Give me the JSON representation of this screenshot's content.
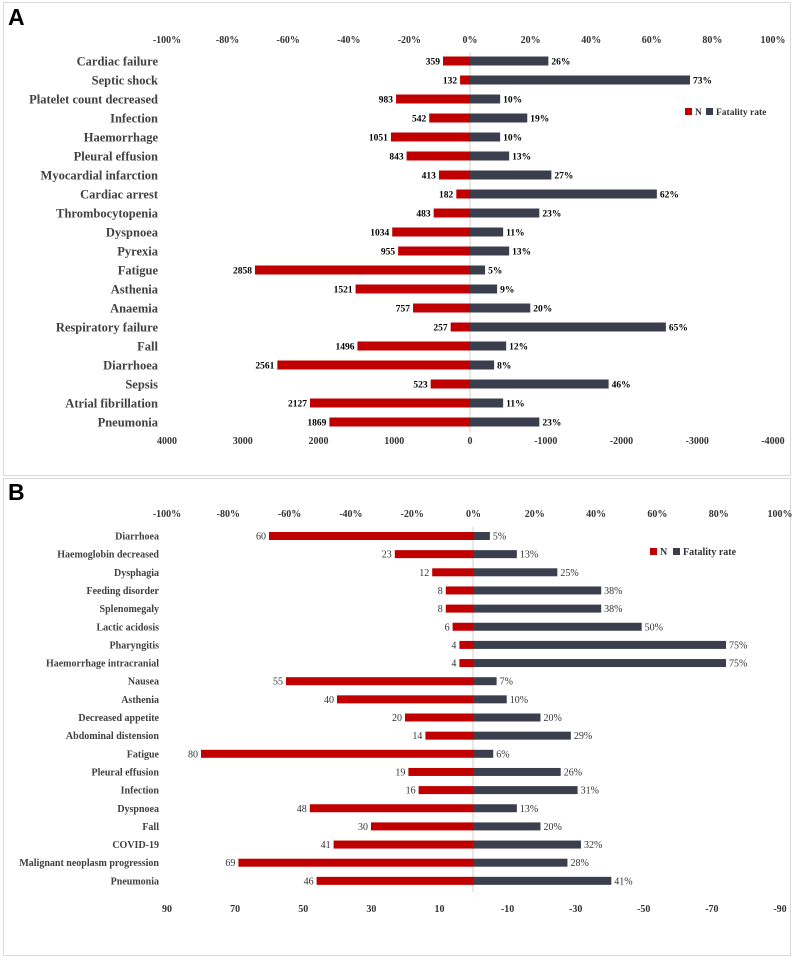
{
  "panels": [
    {
      "letter": "A",
      "legend": {
        "n_label": "N",
        "fatality_label": "Fatality rate"
      },
      "colors": {
        "n": "#c00000",
        "fatality": "#3b3f4d",
        "axis": "#d0d0d0"
      },
      "chart_data": {
        "type": "bar",
        "orientation": "horizontal-diverging",
        "title": "",
        "top_axis_ticks": [
          "-100%",
          "-80%",
          "-60%",
          "-40%",
          "-20%",
          "0%",
          "20%",
          "40%",
          "60%",
          "80%",
          "100%"
        ],
        "top_axis_range": [
          -100,
          100
        ],
        "bottom_axis_ticks": [
          "4000",
          "3000",
          "2000",
          "1000",
          "0",
          "-1000",
          "-2000",
          "-3000",
          "-4000"
        ],
        "bottom_axis_range": [
          4000,
          -4000
        ],
        "categories": [
          "Cardiac failure",
          "Septic shock",
          "Platelet count decreased",
          "Infection",
          "Haemorrhage",
          "Pleural effusion",
          "Myocardial infarction",
          "Cardiac arrest",
          "Thrombocytopenia",
          "Dyspnoea",
          "Pyrexia",
          "Fatigue",
          "Asthenia",
          "Anaemia",
          "Respiratory failure",
          "Fall",
          "Diarrhoea",
          "Sepsis",
          "Atrial fibrillation",
          "Pneumonia"
        ],
        "series": [
          {
            "name": "N",
            "values": [
              359,
              132,
              983,
              542,
              1051,
              843,
              413,
              182,
              483,
              1034,
              955,
              2858,
              1521,
              757,
              257,
              1496,
              2561,
              523,
              2127,
              1869
            ]
          },
          {
            "name": "Fatality rate",
            "values": [
              26,
              73,
              10,
              19,
              10,
              13,
              27,
              62,
              23,
              11,
              13,
              5,
              9,
              20,
              65,
              12,
              8,
              46,
              11,
              23
            ],
            "unit": "%"
          }
        ],
        "n_labels": [
          "359",
          "132",
          "983",
          "542",
          "1051",
          "843",
          "413",
          "182",
          "483",
          "1034",
          "955",
          "2858",
          "1521",
          "757",
          "257",
          "1496",
          "2561",
          "523",
          "2127",
          "1869"
        ],
        "fatality_labels": [
          "26%",
          "73%",
          "10%",
          "19%",
          "10%",
          "13%",
          "27%",
          "62%",
          "23%",
          "11%",
          "13%",
          "5%",
          "9%",
          "20%",
          "65%",
          "12%",
          "8%",
          "46%",
          "11%",
          "23%"
        ]
      }
    },
    {
      "letter": "B",
      "legend": {
        "n_label": "N",
        "fatality_label": "Fatality rate"
      },
      "colors": {
        "n": "#c00000",
        "fatality": "#3b3f4d",
        "axis": "#d0d0d0"
      },
      "chart_data": {
        "type": "bar",
        "orientation": "horizontal-diverging",
        "title": "",
        "top_axis_ticks": [
          "-100%",
          "-80%",
          "-60%",
          "-40%",
          "-20%",
          "0%",
          "20%",
          "40%",
          "60%",
          "80%",
          "100%"
        ],
        "top_axis_range": [
          -100,
          100
        ],
        "bottom_axis_ticks": [
          "90",
          "70",
          "50",
          "30",
          "10",
          "-10",
          "-30",
          "-50",
          "-70",
          "-90"
        ],
        "bottom_axis_range": [
          90,
          -90
        ],
        "categories": [
          "Diarrhoea",
          "Haemoglobin decreased",
          "Dysphagia",
          "Feeding disorder",
          "Splenomegaly",
          "Lactic acidosis",
          "Pharyngitis",
          "Haemorrhage intracranial",
          "Nausea",
          "Asthenia",
          "Decreased appetite",
          "Abdominal distension",
          "Fatigue",
          "Pleural effusion",
          "Infection",
          "Dyspnoea",
          "Fall",
          "COVID-19",
          "Malignant neoplasm progression",
          "Pneumonia"
        ],
        "series": [
          {
            "name": "N",
            "values": [
              60,
              23,
              12,
              8,
              8,
              6,
              4,
              4,
              55,
              40,
              20,
              14,
              80,
              19,
              16,
              48,
              30,
              41,
              69,
              46
            ]
          },
          {
            "name": "Fatality rate",
            "values": [
              5,
              13,
              25,
              38,
              38,
              50,
              75,
              75,
              7,
              10,
              20,
              29,
              6,
              26,
              31,
              13,
              20,
              32,
              28,
              41
            ],
            "unit": "%"
          }
        ],
        "n_labels": [
          "60",
          "23",
          "12",
          "8",
          "8",
          "6",
          "4",
          "4",
          "55",
          "40",
          "20",
          "14",
          "80",
          "19",
          "16",
          "48",
          "30",
          "41",
          "69",
          "46"
        ],
        "fatality_labels": [
          "5%",
          "13%",
          "25%",
          "38%",
          "38%",
          "50%",
          "75%",
          "75%",
          "7%",
          "10%",
          "20%",
          "29%",
          "6%",
          "26%",
          "31%",
          "13%",
          "20%",
          "32%",
          "28%",
          "41%"
        ]
      }
    }
  ]
}
